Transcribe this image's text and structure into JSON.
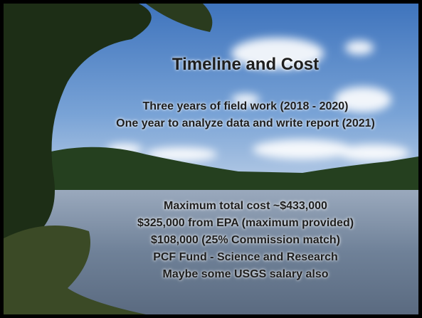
{
  "slide": {
    "title": "Timeline and Cost",
    "schedule": [
      "Three years of field work (2018 - 2020)",
      "One year to analyze data and write report (2021)"
    ],
    "cost": [
      "Maximum total cost ~$433,000",
      "$325,000 from EPA (maximum provided)",
      "$108,000 (25% Commission match)",
      "PCF Fund - Science and Research",
      "Maybe some USGS salary also"
    ]
  }
}
